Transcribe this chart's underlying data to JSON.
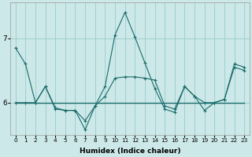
{
  "xlabel": "Humidex (Indice chaleur)",
  "background_color": "#cce8e8",
  "grid_color": "#99cccc",
  "line_color": "#1a6b6b",
  "x": [
    0,
    1,
    2,
    3,
    4,
    5,
    6,
    7,
    8,
    9,
    10,
    11,
    12,
    13,
    14,
    15,
    16,
    17,
    18,
    19,
    20,
    21,
    22,
    23
  ],
  "line_flat": [
    6.0,
    6.0,
    6.0,
    6.0,
    6.0,
    6.0,
    6.0,
    6.0,
    6.0,
    6.0,
    6.0,
    6.0,
    6.0,
    6.0,
    6.0,
    6.0,
    6.0,
    6.0,
    6.0,
    6.0,
    6.0,
    6.0,
    6.0,
    6.0
  ],
  "line_mid": [
    6.0,
    6.0,
    6.0,
    6.25,
    5.92,
    5.88,
    5.88,
    5.72,
    5.95,
    6.1,
    6.38,
    6.4,
    6.4,
    6.38,
    6.35,
    5.95,
    5.9,
    6.25,
    6.1,
    5.88,
    6.0,
    6.05,
    6.55,
    6.5
  ],
  "line_main": [
    6.85,
    6.6,
    6.0,
    6.25,
    5.9,
    5.88,
    5.88,
    5.58,
    5.95,
    6.25,
    7.05,
    7.4,
    7.02,
    6.62,
    6.22,
    5.9,
    5.85,
    6.25,
    6.1,
    6.0,
    6.0,
    6.05,
    6.6,
    6.55
  ],
  "ylim": [
    5.5,
    7.55
  ],
  "yticks": [
    6,
    7
  ],
  "xlim": [
    -0.5,
    23.5
  ]
}
